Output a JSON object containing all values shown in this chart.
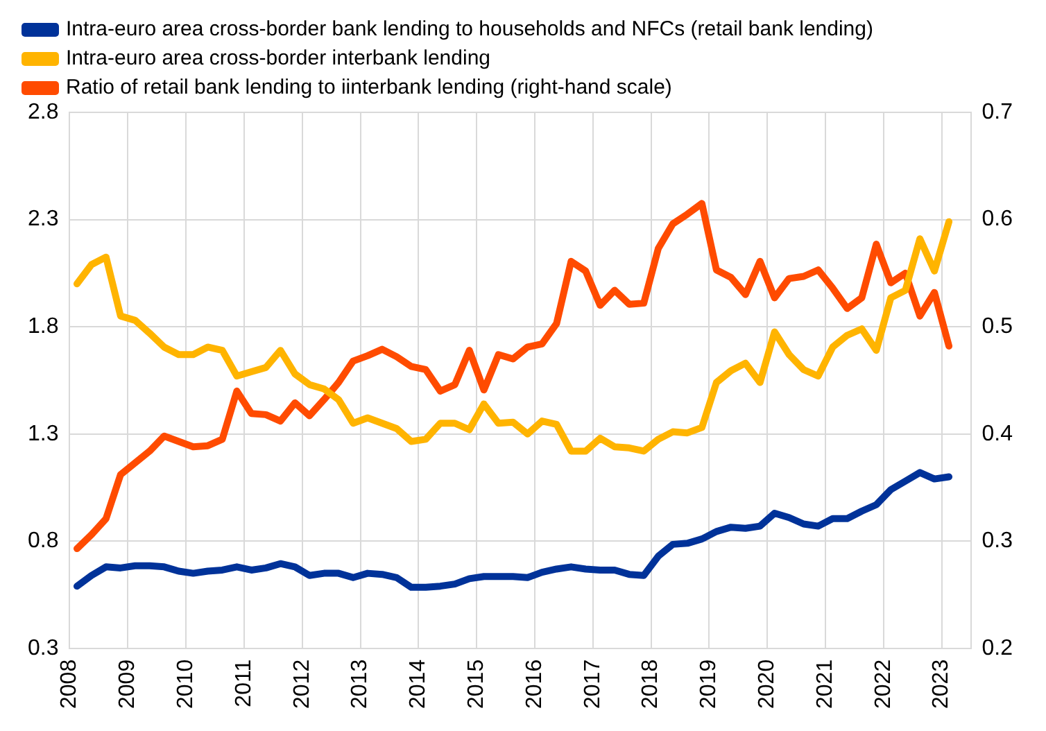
{
  "chart_data": {
    "type": "line",
    "x": [
      2008.125,
      2008.375,
      2008.625,
      2008.875,
      2009.125,
      2009.375,
      2009.625,
      2009.875,
      2010.125,
      2010.375,
      2010.625,
      2010.875,
      2011.125,
      2011.375,
      2011.625,
      2011.875,
      2012.125,
      2012.375,
      2012.625,
      2012.875,
      2013.125,
      2013.375,
      2013.625,
      2013.875,
      2014.125,
      2014.375,
      2014.625,
      2014.875,
      2015.125,
      2015.375,
      2015.625,
      2015.875,
      2016.125,
      2016.375,
      2016.625,
      2016.875,
      2017.125,
      2017.375,
      2017.625,
      2017.875,
      2018.125,
      2018.375,
      2018.625,
      2018.875,
      2019.125,
      2019.375,
      2019.625,
      2019.875,
      2020.125,
      2020.375,
      2020.625,
      2020.875,
      2021.125,
      2021.375,
      2021.625,
      2021.875,
      2022.125,
      2022.375,
      2022.625,
      2022.875,
      2023.125
    ],
    "series": [
      {
        "name": "Intra-euro area cross-border bank lending to households and NFCs (retail bank lending)",
        "color": "#003299",
        "values": [
          0.59,
          0.64,
          0.68,
          0.675,
          0.685,
          0.685,
          0.68,
          0.66,
          0.65,
          0.66,
          0.665,
          0.68,
          0.665,
          0.675,
          0.695,
          0.68,
          0.64,
          0.65,
          0.65,
          0.63,
          0.65,
          0.645,
          0.63,
          0.585,
          0.585,
          0.59,
          0.6,
          0.625,
          0.635,
          0.635,
          0.635,
          0.63,
          0.655,
          0.67,
          0.68,
          0.67,
          0.665,
          0.665,
          0.645,
          0.64,
          0.73,
          0.785,
          0.79,
          0.81,
          0.845,
          0.865,
          0.86,
          0.87,
          0.93,
          0.91,
          0.88,
          0.87,
          0.905,
          0.905,
          0.94,
          0.97,
          1.04,
          1.08,
          1.12,
          1.09,
          1.1
        ]
      },
      {
        "name": "Intra-euro area cross-border interbank lending",
        "color": "#ffb400",
        "values": [
          2.0,
          2.09,
          2.125,
          1.85,
          1.83,
          1.77,
          1.705,
          1.67,
          1.67,
          1.705,
          1.69,
          1.57,
          1.59,
          1.61,
          1.69,
          1.58,
          1.53,
          1.51,
          1.46,
          1.35,
          1.375,
          1.35,
          1.325,
          1.265,
          1.275,
          1.35,
          1.35,
          1.32,
          1.44,
          1.35,
          1.355,
          1.3,
          1.36,
          1.345,
          1.22,
          1.22,
          1.28,
          1.24,
          1.235,
          1.22,
          1.275,
          1.31,
          1.305,
          1.33,
          1.54,
          1.595,
          1.63,
          1.54,
          1.776,
          1.67,
          1.6,
          1.57,
          1.705,
          1.76,
          1.79,
          1.69,
          1.935,
          1.97,
          2.21,
          2.06,
          2.29
        ]
      },
      {
        "name": "Ratio of retail bank lending to iinterbank lending (right-hand scale)",
        "color": "#ff4b00",
        "axis": "y2",
        "values": [
          0.293,
          0.306,
          0.321,
          0.362,
          0.373,
          0.384,
          0.398,
          0.393,
          0.388,
          0.389,
          0.395,
          0.44,
          0.419,
          0.418,
          0.412,
          0.429,
          0.417,
          0.432,
          0.448,
          0.468,
          0.473,
          0.479,
          0.472,
          0.463,
          0.46,
          0.44,
          0.446,
          0.478,
          0.441,
          0.474,
          0.47,
          0.481,
          0.484,
          0.503,
          0.561,
          0.552,
          0.52,
          0.534,
          0.521,
          0.522,
          0.573,
          0.596,
          0.605,
          0.615,
          0.553,
          0.546,
          0.53,
          0.561,
          0.527,
          0.545,
          0.547,
          0.553,
          0.536,
          0.517,
          0.527,
          0.577,
          0.541,
          0.55,
          0.51,
          0.532,
          0.482
        ]
      }
    ],
    "xlim": [
      2008,
      2023.5
    ],
    "xticks": [
      2008,
      2009,
      2010,
      2011,
      2012,
      2013,
      2014,
      2015,
      2016,
      2017,
      2018,
      2019,
      2020,
      2021,
      2022,
      2023
    ],
    "ylim": [
      0.3,
      2.8
    ],
    "yticks": [
      0.3,
      0.8,
      1.3,
      1.8,
      2.3,
      2.8
    ],
    "y2lim": [
      0.2,
      0.7
    ],
    "y2ticks": [
      0.2,
      0.3,
      0.4,
      0.5,
      0.6,
      0.7
    ],
    "grid": true,
    "legend": "top left",
    "marker": "none",
    "line_style": "solid"
  }
}
